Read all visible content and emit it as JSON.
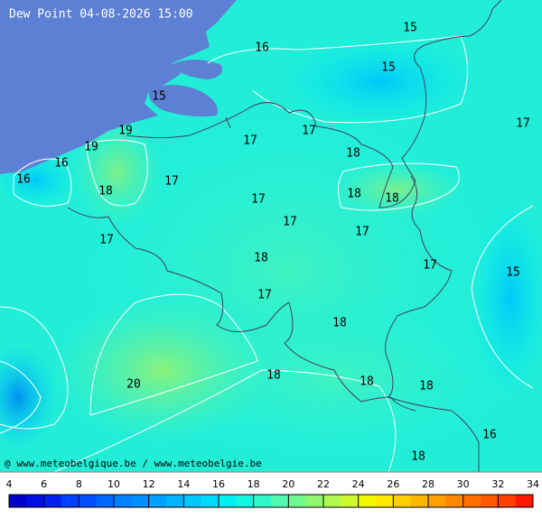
{
  "title": "Dew Point 04-08-2026 15:00",
  "credit": "@ www.meteobelgique.be / www.meteobelgie.be",
  "map_labels": [
    15,
    16,
    15,
    15,
    17,
    19,
    17,
    17,
    19,
    16,
    18,
    16,
    17,
    18,
    17,
    18,
    18,
    17,
    17,
    17,
    18,
    17,
    15,
    17,
    18,
    18,
    20,
    18,
    18,
    16,
    18
  ],
  "colorbar": {
    "ticks": [
      4,
      6,
      8,
      10,
      12,
      14,
      16,
      18,
      20,
      22,
      24,
      26,
      28,
      30,
      32,
      34
    ],
    "colors": [
      "#0000c8",
      "#0010e0",
      "#0020f0",
      "#0040ff",
      "#0050ff",
      "#0068ff",
      "#0080ff",
      "#0090ff",
      "#00a0ff",
      "#00b4ff",
      "#00c8ff",
      "#00dcff",
      "#00f0f0",
      "#10f8e0",
      "#30f8c8",
      "#50f8b0",
      "#70f890",
      "#90f870",
      "#b0f850",
      "#d0f830",
      "#f0f800",
      "#ffe800",
      "#ffd000",
      "#ffb800",
      "#ffa000",
      "#ff8800",
      "#ff7000",
      "#ff5800",
      "#ff4000",
      "#ff1800"
    ]
  }
}
